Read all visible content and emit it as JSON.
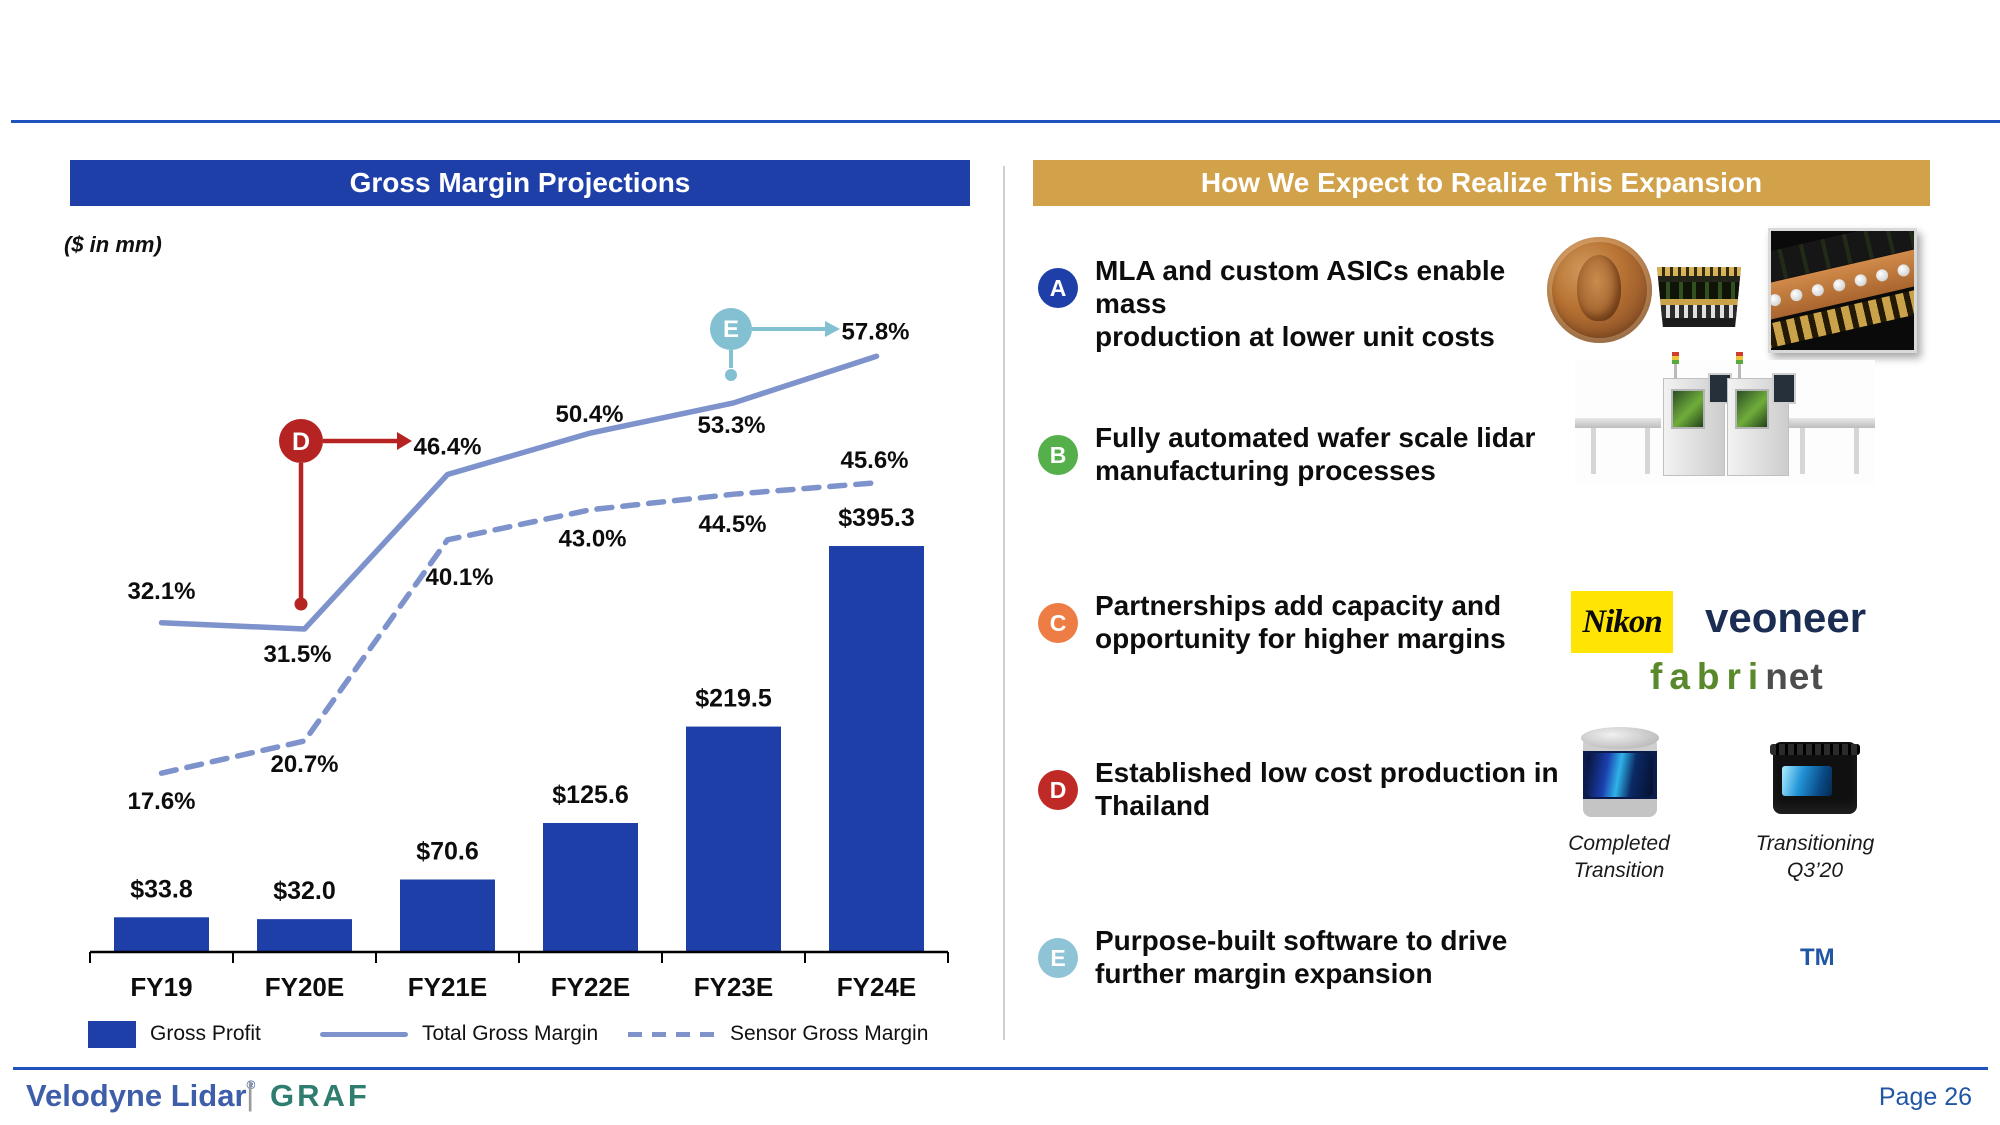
{
  "left_panel": {
    "title": "Gross Margin Projections",
    "units_note": "($ in mm)"
  },
  "chart_data": {
    "type": "bar+line combo",
    "categories": [
      "FY19",
      "FY20E",
      "FY21E",
      "FY22E",
      "FY23E",
      "FY24E"
    ],
    "series": [
      {
        "name": "Gross Profit",
        "type": "bar",
        "color": "#1e3fa8",
        "values": [
          33.8,
          32.0,
          70.6,
          125.6,
          219.5,
          395.3
        ],
        "labels": [
          "$33.8",
          "$32.0",
          "$70.6",
          "$125.6",
          "$219.5",
          "$395.3"
        ]
      },
      {
        "name": "Total Gross Margin",
        "type": "line",
        "style": "solid",
        "color": "#7e92cc",
        "values": [
          32.1,
          31.5,
          46.4,
          50.4,
          53.3,
          57.8
        ],
        "labels": [
          "32.1%",
          "31.5%",
          "46.4%",
          "50.4%",
          "53.3%",
          "57.8%"
        ]
      },
      {
        "name": "Sensor Gross Margin",
        "type": "line",
        "style": "dashed",
        "color": "#7e92cc",
        "values": [
          17.6,
          20.7,
          40.1,
          43.0,
          44.5,
          45.6
        ],
        "labels": [
          "17.6%",
          "20.7%",
          "43.0%",
          "44.5%",
          "45.6%"
        ],
        "labels_all": [
          "17.6%",
          "20.7%",
          "40.1%",
          "43.0%",
          "44.5%",
          "45.6%"
        ]
      }
    ],
    "annotations": [
      {
        "letter": "D",
        "color": "#b52423",
        "attaches_to": "Total Gross Margin @ FY20E",
        "points_at_label": "46.4%"
      },
      {
        "letter": "E",
        "color": "#82c0d2",
        "attaches_to": "Total Gross Margin @ FY23E/FY24E",
        "points_at_label": "57.8%"
      }
    ],
    "legend": [
      "Gross Profit",
      "Total Gross Margin",
      "Sensor Gross Margin"
    ],
    "legend_position": "bottom",
    "y_axis_shown": false,
    "gridlines": false,
    "bar_ylim": [
      0,
      420
    ],
    "pct_range_shown": [
      17.6,
      57.8
    ]
  },
  "right_panel": {
    "title": "How We Expect to Realize This Expansion",
    "items": [
      {
        "letter": "A",
        "color": "#1e3fa8",
        "lines": [
          "MLA and custom ASICs enable mass",
          "production at lower unit costs"
        ]
      },
      {
        "letter": "B",
        "color": "#55b04b",
        "lines": [
          "Fully automated wafer scale lidar",
          "manufacturing processes"
        ]
      },
      {
        "letter": "C",
        "color": "#ed7d45",
        "lines": [
          "Partnerships add capacity and",
          "opportunity for higher margins"
        ]
      },
      {
        "letter": "D",
        "color": "#c02a26",
        "lines": [
          "Established low cost production in",
          "Thailand"
        ]
      },
      {
        "letter": "E",
        "color": "#8fc3d6",
        "lines": [
          "Purpose-built software to drive",
          "further margin expansion"
        ]
      }
    ],
    "logos": {
      "nikon": "Nikon",
      "veoneer": "veoneer",
      "fabrinet_green": "fabri",
      "fabrinet_gray": "net"
    },
    "captions": {
      "puck_line1": "Completed",
      "puck_line2": "Transition",
      "velarray_line1": "Transitioning",
      "velarray_line2": "Q3’20",
      "tm": "TM"
    }
  },
  "footer": {
    "brand": "Velodyne Lidar",
    "reg": "®",
    "divider": "|",
    "brand2": "GRAF",
    "page": "Page 26"
  },
  "colors": {
    "royal_blue": "#1e3fa8",
    "gold_header": "#d2a24b",
    "periwinkle_line": "#7e92cc",
    "rule_blue": "#2053be",
    "marker_red": "#b52423",
    "marker_teal": "#82c0d2",
    "footer_blue": "#3f5ea9",
    "graf_teal": "#2e7d6e",
    "page_blue": "#2156a5"
  }
}
